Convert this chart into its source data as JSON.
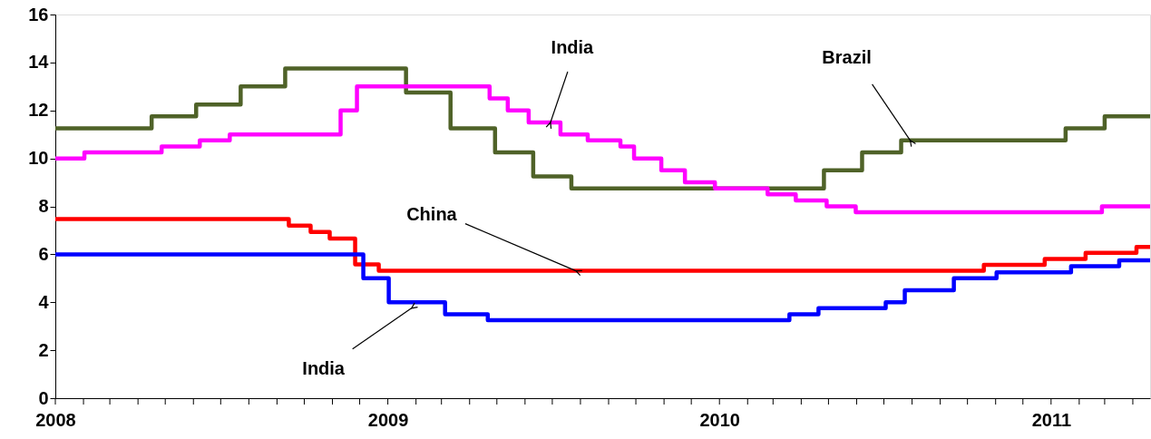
{
  "chart_data": {
    "type": "step",
    "xlim": [
      "2008-01-01",
      "2011-04-20"
    ],
    "xticks": [
      "2008",
      {
        "value": "2008-02",
        "label": null
      },
      {
        "value": "2008-03",
        "label": null
      },
      {
        "value": "2008-04",
        "label": null
      },
      {
        "value": "2008-05",
        "label": null
      },
      {
        "value": "2008-06",
        "label": null
      },
      {
        "value": "2008-07",
        "label": null
      },
      {
        "value": "2008-08",
        "label": null
      },
      {
        "value": "2008-09",
        "label": null
      },
      {
        "value": "2008-10",
        "label": null
      },
      {
        "value": "2008-11",
        "label": null
      },
      {
        "value": "2008-12",
        "label": null
      },
      "2009",
      {
        "value": "2009-02",
        "label": null
      },
      {
        "value": "2009-03",
        "label": null
      },
      {
        "value": "2009-04",
        "label": null
      },
      {
        "value": "2009-05",
        "label": null
      },
      {
        "value": "2009-06",
        "label": null
      },
      {
        "value": "2009-07",
        "label": null
      },
      {
        "value": "2009-08",
        "label": null
      },
      {
        "value": "2009-09",
        "label": null
      },
      {
        "value": "2009-10",
        "label": null
      },
      {
        "value": "2009-11",
        "label": null
      },
      {
        "value": "2009-12",
        "label": null
      },
      "2010",
      {
        "value": "2010-02",
        "label": null
      },
      {
        "value": "2010-03",
        "label": null
      },
      {
        "value": "2010-04",
        "label": null
      },
      {
        "value": "2010-05",
        "label": null
      },
      {
        "value": "2010-06",
        "label": null
      },
      {
        "value": "2010-07",
        "label": null
      },
      {
        "value": "2010-08",
        "label": null
      },
      {
        "value": "2010-09",
        "label": null
      },
      {
        "value": "2010-10",
        "label": null
      },
      {
        "value": "2010-11",
        "label": null
      },
      {
        "value": "2010-12",
        "label": null
      },
      "2011",
      {
        "value": "2011-02",
        "label": null
      },
      {
        "value": "2011-03",
        "label": null
      },
      {
        "value": "2011-04",
        "label": null
      }
    ],
    "ylim": [
      0,
      16
    ],
    "yticks": [
      0,
      2,
      4,
      6,
      8,
      10,
      12,
      14,
      16
    ],
    "grid": false,
    "legend": false,
    "series": [
      {
        "color": "#4f6228",
        "x": [
          "2008-01-01",
          "2008-04-16",
          "2008-06-04",
          "2008-07-23",
          "2008-09-10",
          "2009-01-21",
          "2009-03-11",
          "2009-04-29",
          "2009-06-10",
          "2009-07-22",
          "2010-04-26",
          "2010-06-07",
          "2010-07-20",
          "2011-01-17",
          "2011-03-01",
          "2011-04-20"
        ],
        "values": [
          11.25,
          11.75,
          12.25,
          13.0,
          13.75,
          12.75,
          11.25,
          10.25,
          9.25,
          8.75,
          9.5,
          10.25,
          10.75,
          11.25,
          11.75,
          11.75
        ]
      },
      {
        "color": "#ff00ff",
        "x": [
          "2008-01-01",
          "2008-02-02",
          "2008-04-27",
          "2008-06-08",
          "2008-07-11",
          "2008-11-10",
          "2008-11-28",
          "2009-04-23",
          "2009-05-13",
          "2009-06-05",
          "2009-07-10",
          "2009-08-09",
          "2009-09-14",
          "2009-09-29",
          "2009-10-29",
          "2009-11-24",
          "2009-12-27",
          "2010-02-23",
          "2010-03-26",
          "2010-04-29",
          "2010-05-31",
          "2011-02-26",
          "2011-04-20"
        ],
        "values": [
          10.0,
          10.25,
          10.5,
          10.75,
          11.0,
          12.0,
          13.0,
          12.5,
          12.0,
          11.5,
          11.0,
          10.75,
          10.5,
          10.0,
          9.5,
          9.0,
          8.75,
          8.5,
          8.25,
          8.0,
          7.75,
          8.0,
          8.0
        ]
      },
      {
        "color": "#ff0000",
        "x": [
          "2008-01-01",
          "2008-09-14",
          "2008-10-08",
          "2008-10-29",
          "2008-11-26",
          "2008-12-22",
          "2010-10-19",
          "2010-12-25",
          "2011-02-08",
          "2011-04-05",
          "2011-04-20"
        ],
        "values": [
          7.47,
          7.2,
          6.93,
          6.66,
          5.58,
          5.31,
          5.56,
          5.81,
          6.06,
          6.31,
          6.31
        ]
      },
      {
        "color": "#0000ff",
        "x": [
          "2008-01-01",
          "2008-12-05",
          "2009-01-02",
          "2009-03-05",
          "2009-04-21",
          "2010-03-19",
          "2010-04-20",
          "2010-07-03",
          "2010-07-24",
          "2010-09-16",
          "2010-11-02",
          "2011-01-23",
          "2011-03-17",
          "2011-04-20"
        ],
        "values": [
          6.0,
          5.0,
          4.0,
          3.5,
          3.25,
          3.5,
          3.75,
          4.0,
          4.5,
          5.0,
          5.25,
          5.5,
          5.75,
          5.75
        ]
      }
    ],
    "annotations": [
      {
        "text": "India",
        "x": "2009-06-29",
        "y": 11.5
      },
      {
        "text": "Brazil",
        "x": "2010-07-30",
        "y": 10.75
      },
      {
        "text": "China",
        "x": "2009-07-27",
        "y": 5.31
      },
      {
        "text": "India",
        "x": "2009-01-27",
        "y": 3.75
      }
    ]
  }
}
